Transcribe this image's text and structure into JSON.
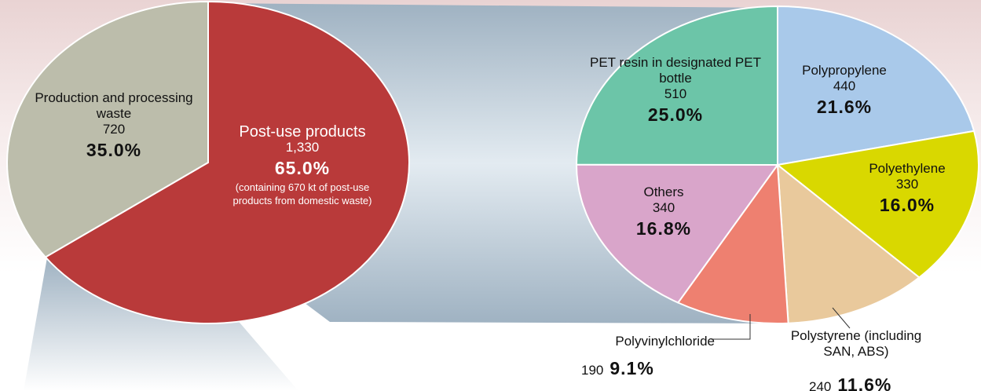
{
  "chart_data": [
    {
      "type": "pie",
      "categories": [
        "Post-use products",
        "Production and processing waste"
      ],
      "values": [
        65,
        35
      ],
      "value_labels": [
        "65.0%",
        "35.0%"
      ],
      "amounts": [
        {
          "value": 1330,
          "label": "1,330"
        },
        720
      ],
      "note": "(containing 670 kt of post-use products from domestic waste)",
      "colors": [
        "#b93a3a",
        "#bcbdab"
      ]
    },
    {
      "type": "pie",
      "categories": [
        "Polypropylene",
        "Polyethylene",
        "Polystyrene (including SAN, ABS)",
        "Polyvinylchloride",
        "Others",
        "PET resin in designated PET bottle"
      ],
      "values": [
        21.6,
        16,
        11.6,
        9.1,
        16.8,
        25
      ],
      "value_labels": [
        "21.6%",
        "16.0%",
        "11.6%",
        "9.1%",
        "16.8%",
        "25.0%"
      ],
      "amounts": [
        440,
        330,
        240,
        190,
        340,
        510
      ],
      "colors": [
        "#a9c9ea",
        "#d9d800",
        "#e9c99c",
        "#ee8070",
        "#d9a5ca",
        "#6cc5a8"
      ]
    }
  ]
}
